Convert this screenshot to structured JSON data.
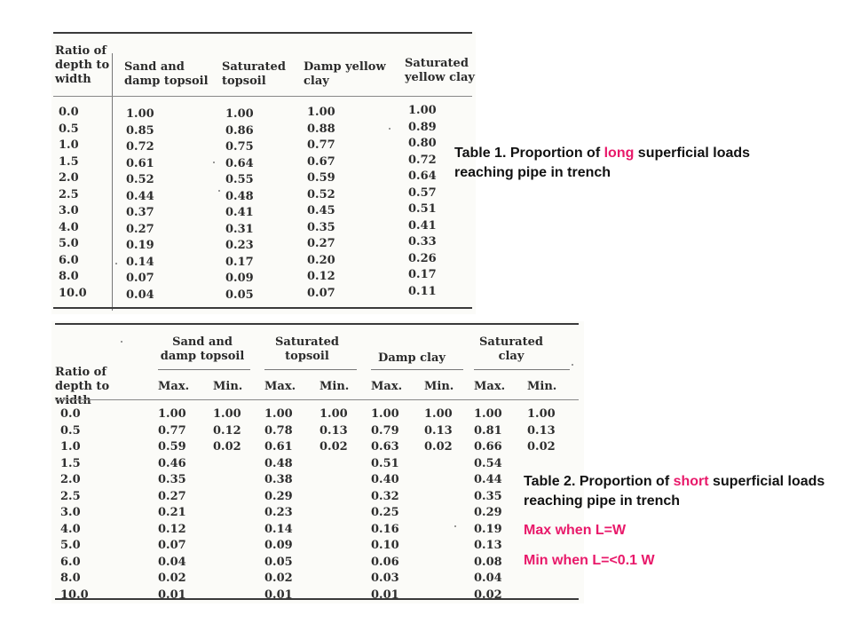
{
  "table1": {
    "headers": {
      "ratio": "Ratio of depth to width",
      "sand": "Sand and damp topsoil",
      "sat_top": "Saturated topsoil",
      "damp_clay": "Damp yellow clay",
      "sat_clay": "Saturated yellow clay"
    },
    "ratio": [
      "0.0",
      "0.5",
      "1.0",
      "1.5",
      "2.0",
      "2.5",
      "3.0",
      "4.0",
      "5.0",
      "6.0",
      "8.0",
      "10.0"
    ],
    "sand": [
      "1.00",
      "0.85",
      "0.72",
      "0.61",
      "0.52",
      "0.44",
      "0.37",
      "0.27",
      "0.19",
      "0.14",
      "0.07",
      "0.04"
    ],
    "sat_top": [
      "1.00",
      "0.86",
      "0.75",
      "0.64",
      "0.55",
      "0.48",
      "0.41",
      "0.31",
      "0.23",
      "0.17",
      "0.09",
      "0.05"
    ],
    "damp_clay": [
      "1.00",
      "0.88",
      "0.77",
      "0.67",
      "0.59",
      "0.52",
      "0.45",
      "0.35",
      "0.27",
      "0.20",
      "0.12",
      "0.07"
    ],
    "sat_clay": [
      "1.00",
      "0.89",
      "0.80",
      "0.72",
      "0.64",
      "0.57",
      "0.51",
      "0.41",
      "0.33",
      "0.26",
      "0.17",
      "0.11"
    ]
  },
  "table2": {
    "headers": {
      "ratio": "Ratio of depth to width",
      "sand": "Sand and damp topsoil",
      "sat_top": "Saturated topsoil",
      "damp_clay": "Damp clay",
      "sat_clay": "Saturated clay",
      "max": "Max.",
      "min": "Min."
    },
    "ratio": [
      "0.0",
      "0.5",
      "1.0",
      "1.5",
      "2.0",
      "2.5",
      "3.0",
      "4.0",
      "5.0",
      "6.0",
      "8.0",
      "10.0"
    ],
    "sand_max": [
      "1.00",
      "0.77",
      "0.59",
      "0.46",
      "0.35",
      "0.27",
      "0.21",
      "0.12",
      "0.07",
      "0.04",
      "0.02",
      "0.01"
    ],
    "sand_min": [
      "1.00",
      "0.12",
      "0.02"
    ],
    "sat_top_max": [
      "1.00",
      "0.78",
      "0.61",
      "0.48",
      "0.38",
      "0.29",
      "0.23",
      "0.14",
      "0.09",
      "0.05",
      "0.02",
      "0.01"
    ],
    "sat_top_min": [
      "1.00",
      "0.13",
      "0.02"
    ],
    "damp_clay_max": [
      "1.00",
      "0.79",
      "0.63",
      "0.51",
      "0.40",
      "0.32",
      "0.25",
      "0.16",
      "0.10",
      "0.06",
      "0.03",
      "0.01"
    ],
    "damp_clay_min": [
      "1.00",
      "0.13",
      "0.02"
    ],
    "sat_clay_max": [
      "1.00",
      "0.81",
      "0.66",
      "0.54",
      "0.44",
      "0.35",
      "0.29",
      "0.19",
      "0.13",
      "0.08",
      "0.04",
      "0.02"
    ],
    "sat_clay_min": [
      "1.00",
      "0.13",
      "0.02"
    ]
  },
  "captions": {
    "table1_pre": "Table 1. Proportion of ",
    "table1_accent": "long",
    "table1_post": " superficial loads reaching pipe in trench",
    "table2_pre": "Table 2. Proportion of ",
    "table2_accent": "short",
    "table2_post": " superficial loads reaching pipe in trench",
    "max_note": "Max when L=W",
    "min_note": "Min when L=<0.1 W"
  },
  "colors": {
    "accent": "#e8196a",
    "text": "#111111"
  }
}
